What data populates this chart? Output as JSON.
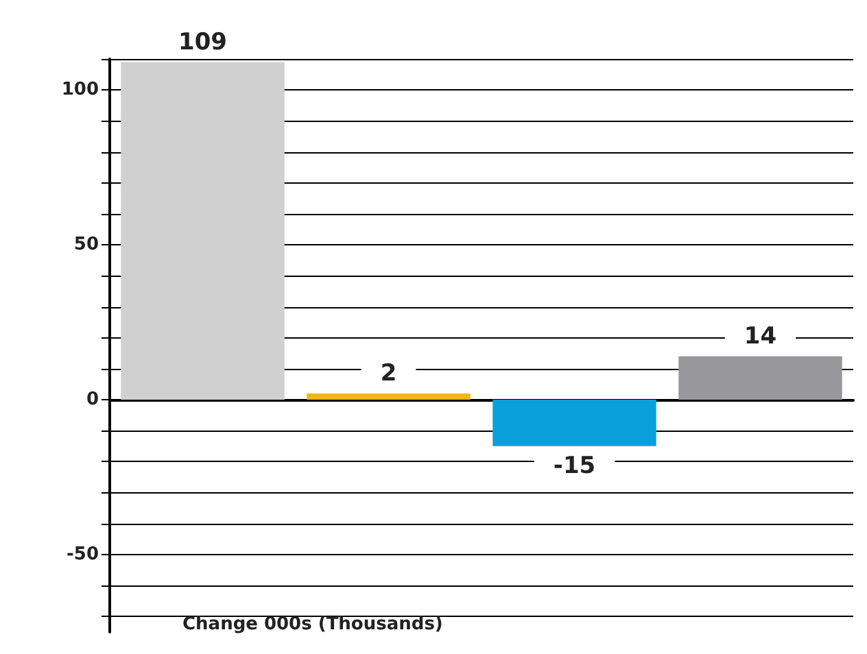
{
  "chart_data": {
    "type": "bar",
    "xlabel": "Change 000s (Thousands)",
    "categories": [
      null,
      null,
      null,
      null
    ],
    "values": [
      109,
      2,
      -15,
      14
    ],
    "colors": [
      "#d0d0d0",
      "#f0b41e",
      "#0aa0dc",
      "#98989a"
    ],
    "ylim": [
      -75,
      110
    ],
    "yticks": [
      {
        "value": -70,
        "label": null
      },
      {
        "value": -60,
        "label": null
      },
      -50,
      {
        "value": -40,
        "label": null
      },
      {
        "value": -30,
        "label": null
      },
      {
        "value": -20,
        "label": null
      },
      {
        "value": -10,
        "label": null
      },
      0,
      {
        "value": 10,
        "label": null
      },
      {
        "value": 20,
        "label": null
      },
      {
        "value": 30,
        "label": null
      },
      {
        "value": 40,
        "label": null
      },
      50,
      {
        "value": 60,
        "label": null
      },
      {
        "value": 70,
        "label": null
      },
      {
        "value": 80,
        "label": null
      },
      {
        "value": 90,
        "label": null
      },
      100,
      {
        "value": 110,
        "label": null
      }
    ],
    "grid": "y",
    "data_labels": true
  }
}
